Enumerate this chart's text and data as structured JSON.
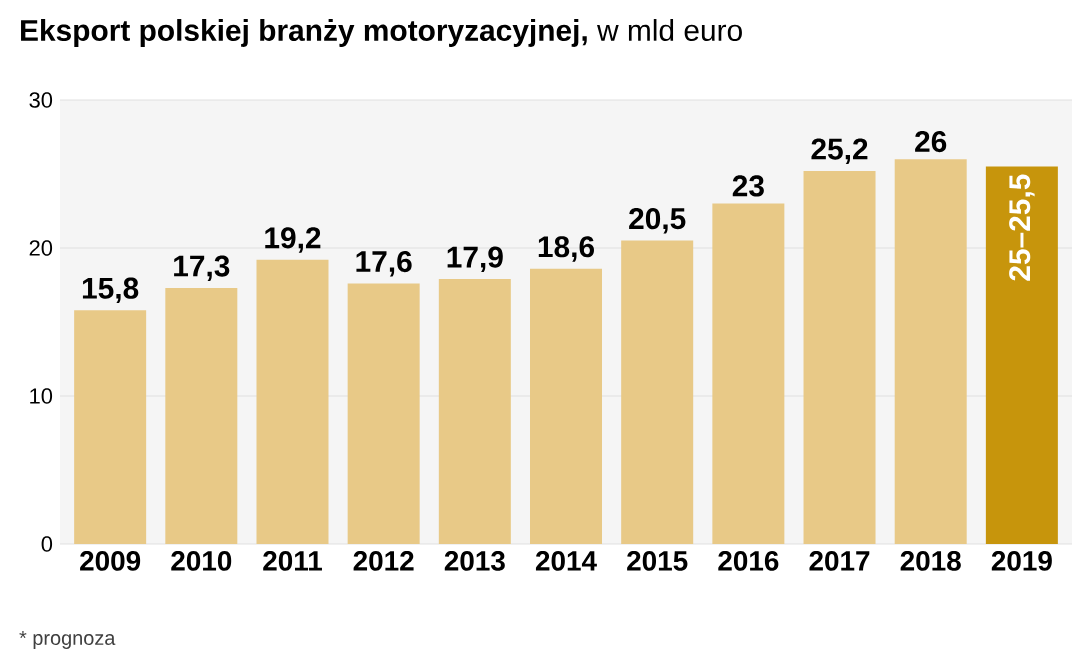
{
  "chart_data": {
    "type": "bar",
    "title": "**Eksport polskiej branży motoryzacyjnej,** w mld euro",
    "categories": [
      "2009",
      "2010",
      "2011",
      "2012",
      "2013",
      "2014",
      "2015",
      "2016",
      "2017",
      "2018",
      "2019"
    ],
    "values": [
      15.8,
      17.3,
      19.2,
      17.6,
      17.9,
      18.6,
      20.5,
      23,
      25.2,
      26,
      25.5
    ],
    "value_labels": [
      "15,8",
      "17,3",
      "19,2",
      "17,6",
      "17,9",
      "18,6",
      "20,5",
      "23",
      "25,2",
      "26",
      "25–25,5"
    ],
    "colors": [
      "#e8c987",
      "#e8c987",
      "#e8c987",
      "#e8c987",
      "#e8c987",
      "#e8c987",
      "#e8c987",
      "#e8c987",
      "#e8c987",
      "#e8c987",
      "#c7950c"
    ],
    "ylim": [
      0,
      30
    ],
    "yticks": [
      0,
      10,
      20,
      30
    ],
    "grid": "y",
    "annotations": [
      "* prognoza"
    ]
  }
}
